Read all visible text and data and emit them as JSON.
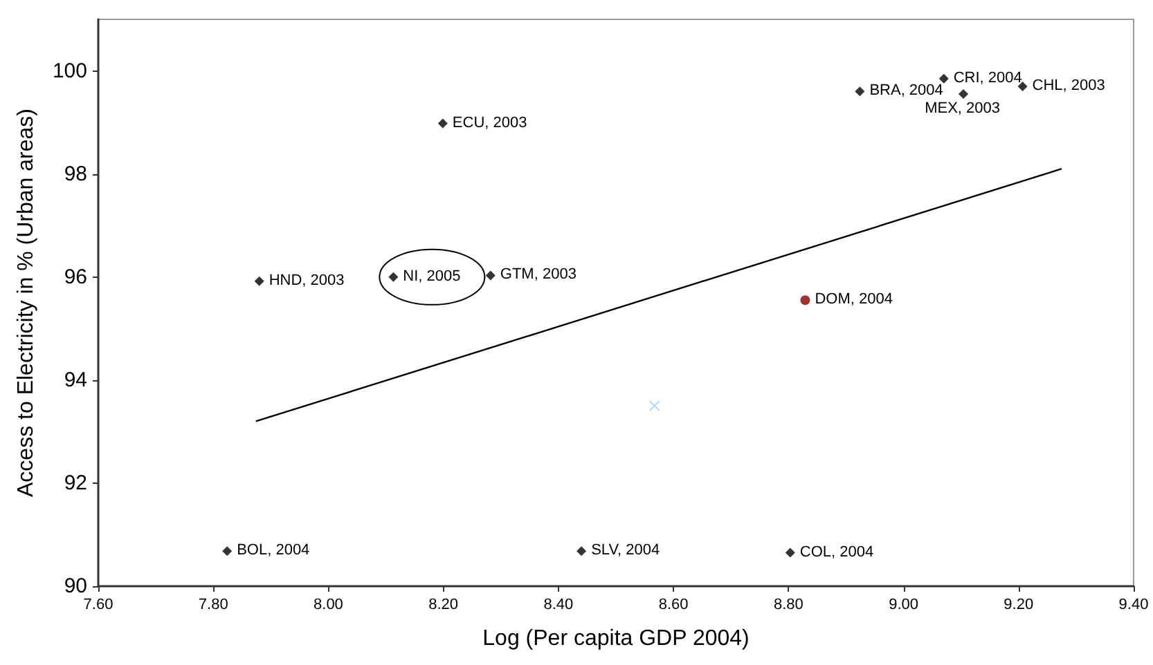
{
  "chart_data": {
    "type": "scatter",
    "xlabel": "Log (Per capita GDP 2004)",
    "ylabel": "Access to Electricity in % (Urban areas)",
    "xlim": [
      7.6,
      9.4
    ],
    "xticks": [
      {
        "value": 7.6,
        "label": "7.60"
      },
      {
        "value": 7.8,
        "label": "7.80"
      },
      {
        "value": 8.0,
        "label": "8.00"
      },
      {
        "value": 8.2,
        "label": "8.20"
      },
      {
        "value": 8.4,
        "label": "8.40"
      },
      {
        "value": 8.6,
        "label": "8.60"
      },
      {
        "value": 8.8,
        "label": "8.80"
      },
      {
        "value": 9.0,
        "label": "9.00"
      },
      {
        "value": 9.2,
        "label": "9.20"
      },
      {
        "value": 9.4,
        "label": "9.40"
      }
    ],
    "ylim": [
      90,
      101
    ],
    "yticks": [
      90,
      92,
      94,
      96,
      98,
      100
    ],
    "grid": false,
    "series": [
      {
        "color": "#000000",
        "marker": "diamond",
        "x": [
          7.824,
          7.88,
          8.113,
          8.199,
          8.282,
          8.44,
          8.803,
          8.924,
          9.07,
          9.104,
          9.207
        ],
        "values": [
          90.68,
          95.92,
          96.0,
          98.98,
          96.03,
          90.68,
          90.65,
          99.6,
          99.85,
          99.55,
          99.7
        ]
      },
      {
        "color": "#8b0000",
        "marker": "circle",
        "x": [
          8.829
        ],
        "values": [
          95.55
        ]
      },
      {
        "color": "#99ccff",
        "marker": "cross",
        "x": [
          8.567
        ],
        "values": [
          93.5
        ]
      },
      {
        "type": "line",
        "color": "#000000",
        "marker": "none",
        "x": [
          7.874,
          9.275
        ],
        "values": [
          93.2,
          98.1
        ]
      }
    ],
    "annotations": [
      {
        "text": "BOL, 2004",
        "x": 7.824,
        "y": 90.68
      },
      {
        "text": "HND, 2003",
        "x": 7.88,
        "y": 95.92
      },
      {
        "text": "NI, 2005",
        "x": 8.113,
        "y": 96.0
      },
      {
        "text": "ECU, 2003",
        "x": 8.199,
        "y": 98.98
      },
      {
        "text": "GTM, 2003",
        "x": 8.282,
        "y": 96.03
      },
      {
        "text": "SLV, 2004",
        "x": 8.44,
        "y": 90.68
      },
      {
        "text": "COL, 2004",
        "x": 8.803,
        "y": 90.65
      },
      {
        "text": "CRI, 2004",
        "x": 9.07,
        "y": 99.85
      },
      {
        "text": "CHL, 2003",
        "x": 9.207,
        "y": 99.7
      },
      {
        "text": "BRA, 2004",
        "x": 8.924,
        "y": 99.6
      },
      {
        "text": "MEX, 2003",
        "x": 9.104,
        "y": 99.55
      },
      {
        "text": "DOM, 2004",
        "x": 8.829,
        "y": 95.55
      }
    ]
  }
}
